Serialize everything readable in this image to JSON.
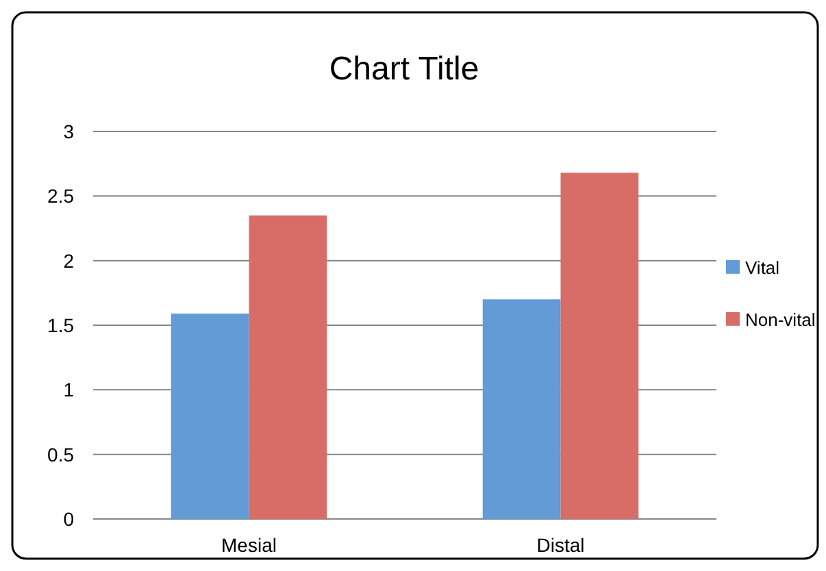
{
  "chart_data": {
    "type": "bar",
    "title": "Chart Title",
    "categories": [
      "Mesial",
      "Distal"
    ],
    "series": [
      {
        "name": "Vital",
        "color": "#629bd6",
        "values": [
          1.59,
          1.7
        ]
      },
      {
        "name": "Non-vital",
        "color": "#d86c66",
        "values": [
          2.35,
          2.68
        ]
      }
    ],
    "ylim": [
      0,
      3
    ],
    "yticks": [
      0,
      0.5,
      1,
      1.5,
      2,
      2.5,
      3
    ],
    "grid": "y",
    "legend": "right"
  }
}
